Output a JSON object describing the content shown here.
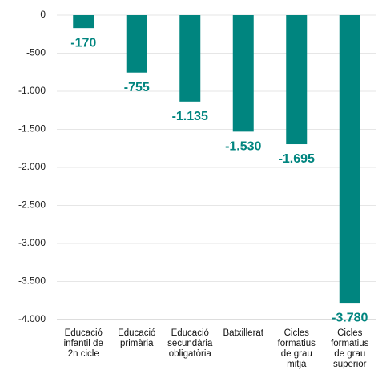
{
  "chart_data": {
    "type": "bar",
    "categories": [
      "Educació infantil de 2n cicle",
      "Educació primària",
      "Educació secundària obligatòria",
      "Batxillerat",
      "Cicles formatius de grau mitjà",
      "Cicles formatius de grau superior"
    ],
    "values": [
      -170,
      -755,
      -1135,
      -1530,
      -1695,
      -3780
    ],
    "value_labels": [
      "-170",
      "-755",
      "-1.135",
      "-1.530",
      "-1.695",
      "-3.780"
    ],
    "color": "#00857f",
    "ylim": [
      -4000,
      0
    ],
    "yticks": [
      0,
      -500,
      {
        "value": -1000,
        "label": "-1.000"
      },
      {
        "value": -1500,
        "label": "-1.500"
      },
      {
        "value": -2000,
        "label": "-2.000"
      },
      {
        "value": -2500,
        "label": "-2.500"
      },
      {
        "value": -3000,
        "label": "-3.000"
      },
      {
        "value": -3500,
        "label": "-3.500"
      },
      {
        "value": -4000,
        "label": "-4.000"
      }
    ],
    "grid": true
  }
}
